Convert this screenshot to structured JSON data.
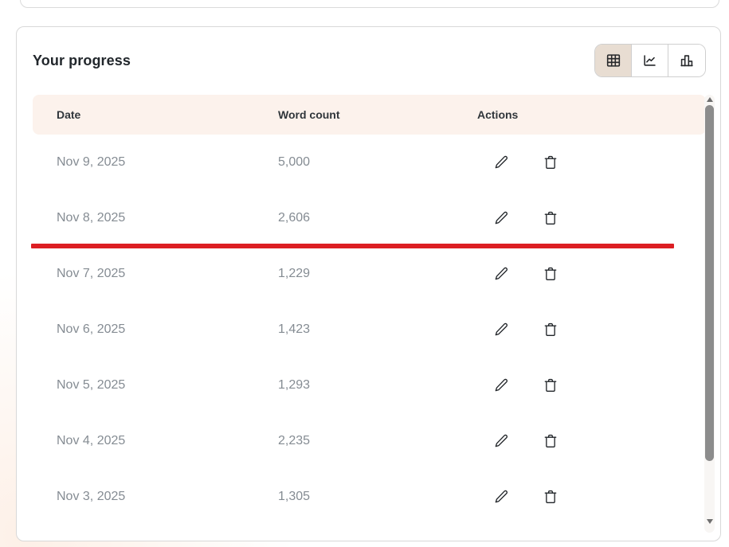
{
  "card": {
    "title": "Your progress",
    "view_toggle": [
      {
        "id": "table",
        "icon": "table-icon",
        "active": true
      },
      {
        "id": "line-chart",
        "icon": "line-chart-icon",
        "active": false
      },
      {
        "id": "bar-chart",
        "icon": "bar-chart-icon",
        "active": false
      }
    ],
    "table": {
      "columns": [
        "Date",
        "Word count",
        "Actions"
      ],
      "rows": [
        {
          "date": "Nov 9, 2025",
          "word_count": "5,000"
        },
        {
          "date": "Nov 8, 2025",
          "word_count": "2,606"
        },
        {
          "date": "Nov 7, 2025",
          "word_count": "1,229"
        },
        {
          "date": "Nov 6, 2025",
          "word_count": "1,423"
        },
        {
          "date": "Nov 5, 2025",
          "word_count": "1,293"
        },
        {
          "date": "Nov 4, 2025",
          "word_count": "2,235"
        },
        {
          "date": "Nov 3, 2025",
          "word_count": "1,305"
        }
      ],
      "drop_indicator_after_index": 1
    },
    "colors": {
      "header_row_bg": "#fcf2ec",
      "active_toggle_bg": "#e8ddd2",
      "drop_indicator": "#dc1e23"
    }
  }
}
